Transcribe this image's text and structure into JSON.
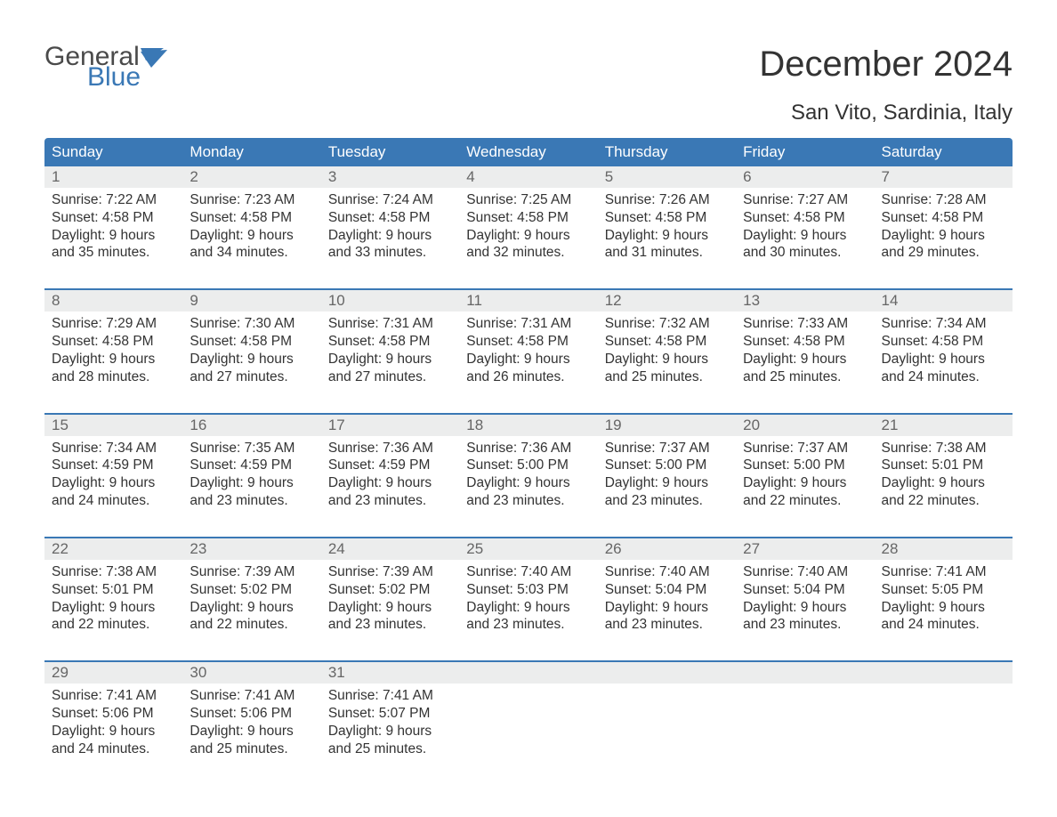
{
  "logo": {
    "text_top": "General",
    "text_bottom": "Blue",
    "color_top": "#4a4a4a",
    "color_bottom": "#3a78b5",
    "flag_color": "#3a78b5"
  },
  "header": {
    "month_title": "December 2024",
    "location": "San Vito, Sardinia, Italy"
  },
  "calendar": {
    "type": "table",
    "header_bg": "#3a78b5",
    "header_text_color": "#ffffff",
    "daynum_bg": "#eceded",
    "daynum_color": "#666666",
    "week_separator_color": "#3a78b5",
    "body_text_color": "#333333",
    "background_color": "#ffffff",
    "weekdays": [
      "Sunday",
      "Monday",
      "Tuesday",
      "Wednesday",
      "Thursday",
      "Friday",
      "Saturday"
    ],
    "weeks": [
      {
        "days": [
          {
            "num": "1",
            "sunrise": "Sunrise: 7:22 AM",
            "sunset": "Sunset: 4:58 PM",
            "daylight": "Daylight: 9 hours and 35 minutes."
          },
          {
            "num": "2",
            "sunrise": "Sunrise: 7:23 AM",
            "sunset": "Sunset: 4:58 PM",
            "daylight": "Daylight: 9 hours and 34 minutes."
          },
          {
            "num": "3",
            "sunrise": "Sunrise: 7:24 AM",
            "sunset": "Sunset: 4:58 PM",
            "daylight": "Daylight: 9 hours and 33 minutes."
          },
          {
            "num": "4",
            "sunrise": "Sunrise: 7:25 AM",
            "sunset": "Sunset: 4:58 PM",
            "daylight": "Daylight: 9 hours and 32 minutes."
          },
          {
            "num": "5",
            "sunrise": "Sunrise: 7:26 AM",
            "sunset": "Sunset: 4:58 PM",
            "daylight": "Daylight: 9 hours and 31 minutes."
          },
          {
            "num": "6",
            "sunrise": "Sunrise: 7:27 AM",
            "sunset": "Sunset: 4:58 PM",
            "daylight": "Daylight: 9 hours and 30 minutes."
          },
          {
            "num": "7",
            "sunrise": "Sunrise: 7:28 AM",
            "sunset": "Sunset: 4:58 PM",
            "daylight": "Daylight: 9 hours and 29 minutes."
          }
        ]
      },
      {
        "days": [
          {
            "num": "8",
            "sunrise": "Sunrise: 7:29 AM",
            "sunset": "Sunset: 4:58 PM",
            "daylight": "Daylight: 9 hours and 28 minutes."
          },
          {
            "num": "9",
            "sunrise": "Sunrise: 7:30 AM",
            "sunset": "Sunset: 4:58 PM",
            "daylight": "Daylight: 9 hours and 27 minutes."
          },
          {
            "num": "10",
            "sunrise": "Sunrise: 7:31 AM",
            "sunset": "Sunset: 4:58 PM",
            "daylight": "Daylight: 9 hours and 27 minutes."
          },
          {
            "num": "11",
            "sunrise": "Sunrise: 7:31 AM",
            "sunset": "Sunset: 4:58 PM",
            "daylight": "Daylight: 9 hours and 26 minutes."
          },
          {
            "num": "12",
            "sunrise": "Sunrise: 7:32 AM",
            "sunset": "Sunset: 4:58 PM",
            "daylight": "Daylight: 9 hours and 25 minutes."
          },
          {
            "num": "13",
            "sunrise": "Sunrise: 7:33 AM",
            "sunset": "Sunset: 4:58 PM",
            "daylight": "Daylight: 9 hours and 25 minutes."
          },
          {
            "num": "14",
            "sunrise": "Sunrise: 7:34 AM",
            "sunset": "Sunset: 4:58 PM",
            "daylight": "Daylight: 9 hours and 24 minutes."
          }
        ]
      },
      {
        "days": [
          {
            "num": "15",
            "sunrise": "Sunrise: 7:34 AM",
            "sunset": "Sunset: 4:59 PM",
            "daylight": "Daylight: 9 hours and 24 minutes."
          },
          {
            "num": "16",
            "sunrise": "Sunrise: 7:35 AM",
            "sunset": "Sunset: 4:59 PM",
            "daylight": "Daylight: 9 hours and 23 minutes."
          },
          {
            "num": "17",
            "sunrise": "Sunrise: 7:36 AM",
            "sunset": "Sunset: 4:59 PM",
            "daylight": "Daylight: 9 hours and 23 minutes."
          },
          {
            "num": "18",
            "sunrise": "Sunrise: 7:36 AM",
            "sunset": "Sunset: 5:00 PM",
            "daylight": "Daylight: 9 hours and 23 minutes."
          },
          {
            "num": "19",
            "sunrise": "Sunrise: 7:37 AM",
            "sunset": "Sunset: 5:00 PM",
            "daylight": "Daylight: 9 hours and 23 minutes."
          },
          {
            "num": "20",
            "sunrise": "Sunrise: 7:37 AM",
            "sunset": "Sunset: 5:00 PM",
            "daylight": "Daylight: 9 hours and 22 minutes."
          },
          {
            "num": "21",
            "sunrise": "Sunrise: 7:38 AM",
            "sunset": "Sunset: 5:01 PM",
            "daylight": "Daylight: 9 hours and 22 minutes."
          }
        ]
      },
      {
        "days": [
          {
            "num": "22",
            "sunrise": "Sunrise: 7:38 AM",
            "sunset": "Sunset: 5:01 PM",
            "daylight": "Daylight: 9 hours and 22 minutes."
          },
          {
            "num": "23",
            "sunrise": "Sunrise: 7:39 AM",
            "sunset": "Sunset: 5:02 PM",
            "daylight": "Daylight: 9 hours and 22 minutes."
          },
          {
            "num": "24",
            "sunrise": "Sunrise: 7:39 AM",
            "sunset": "Sunset: 5:02 PM",
            "daylight": "Daylight: 9 hours and 23 minutes."
          },
          {
            "num": "25",
            "sunrise": "Sunrise: 7:40 AM",
            "sunset": "Sunset: 5:03 PM",
            "daylight": "Daylight: 9 hours and 23 minutes."
          },
          {
            "num": "26",
            "sunrise": "Sunrise: 7:40 AM",
            "sunset": "Sunset: 5:04 PM",
            "daylight": "Daylight: 9 hours and 23 minutes."
          },
          {
            "num": "27",
            "sunrise": "Sunrise: 7:40 AM",
            "sunset": "Sunset: 5:04 PM",
            "daylight": "Daylight: 9 hours and 23 minutes."
          },
          {
            "num": "28",
            "sunrise": "Sunrise: 7:41 AM",
            "sunset": "Sunset: 5:05 PM",
            "daylight": "Daylight: 9 hours and 24 minutes."
          }
        ]
      },
      {
        "days": [
          {
            "num": "29",
            "sunrise": "Sunrise: 7:41 AM",
            "sunset": "Sunset: 5:06 PM",
            "daylight": "Daylight: 9 hours and 24 minutes."
          },
          {
            "num": "30",
            "sunrise": "Sunrise: 7:41 AM",
            "sunset": "Sunset: 5:06 PM",
            "daylight": "Daylight: 9 hours and 25 minutes."
          },
          {
            "num": "31",
            "sunrise": "Sunrise: 7:41 AM",
            "sunset": "Sunset: 5:07 PM",
            "daylight": "Daylight: 9 hours and 25 minutes."
          },
          {
            "num": "",
            "sunrise": "",
            "sunset": "",
            "daylight": ""
          },
          {
            "num": "",
            "sunrise": "",
            "sunset": "",
            "daylight": ""
          },
          {
            "num": "",
            "sunrise": "",
            "sunset": "",
            "daylight": ""
          },
          {
            "num": "",
            "sunrise": "",
            "sunset": "",
            "daylight": ""
          }
        ]
      }
    ]
  }
}
